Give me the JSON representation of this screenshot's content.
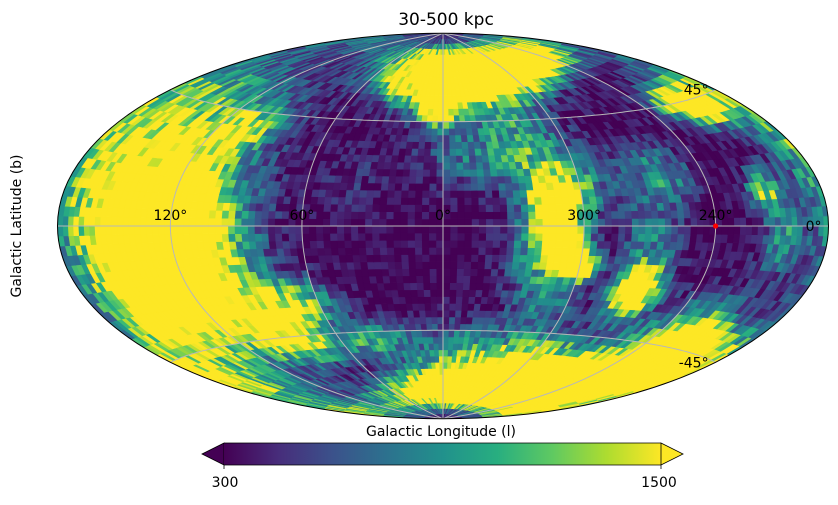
{
  "chart_data": {
    "type": "heatmap",
    "projection": "hammer",
    "title": "30-500 kpc",
    "ylabel": "Galactic Latitude (b)",
    "colorbar_label": "Galactic Longitude (l)",
    "colormap": "viridis",
    "color_range": [
      300,
      1500
    ],
    "colorbar_extend": "both",
    "colorbar_ticks": [
      "300",
      "1500"
    ],
    "lon_ticks": [
      {
        "label": "120°",
        "lon": 120
      },
      {
        "label": "60°",
        "lon": 60
      },
      {
        "label": "0°",
        "lon": 0
      },
      {
        "label": "300°",
        "lon": -60
      },
      {
        "label": "240°",
        "lon": -120
      }
    ],
    "lat_ticks": [
      {
        "label": "45°",
        "lat": 45
      },
      {
        "label": "0°",
        "lat": 0
      },
      {
        "label": "-45°",
        "lat": -45
      }
    ],
    "grid": true,
    "marker": {
      "lon": -120,
      "lat": 0,
      "color": "#ff0000"
    },
    "background_level": 300,
    "blobs": [
      {
        "lon": 122,
        "lat": -3,
        "rl": 22,
        "rb": 22,
        "amp": 2400
      },
      {
        "lon": 128,
        "lat": -18,
        "rl": 16,
        "rb": 14,
        "amp": 1200
      },
      {
        "lon": 150,
        "lat": 0,
        "rl": 22,
        "rb": 45,
        "amp": 500
      },
      {
        "lon": 105,
        "lat": 38,
        "rl": 8,
        "rb": 6,
        "amp": 700
      },
      {
        "lon": 112,
        "lat": 14,
        "rl": 6,
        "rb": 5,
        "amp": 800
      },
      {
        "lon": 70,
        "lat": -30,
        "rl": 10,
        "rb": 6,
        "amp": 800
      },
      {
        "lon": 90,
        "lat": -35,
        "rl": 14,
        "rb": 8,
        "amp": 700
      },
      {
        "lon": 85,
        "lat": -47,
        "rl": 10,
        "rb": 6,
        "amp": 1100
      },
      {
        "lon": 40,
        "lat": -48,
        "rl": 10,
        "rb": 6,
        "amp": 700
      },
      {
        "lon": 155,
        "lat": -35,
        "rl": 12,
        "rb": 12,
        "amp": 600
      },
      {
        "lon": 25,
        "lat": 62,
        "rl": 10,
        "rb": 6,
        "amp": 800
      },
      {
        "lon": -20,
        "lat": 57,
        "rl": 18,
        "rb": 8,
        "amp": 700
      },
      {
        "lon": -40,
        "lat": 68,
        "rl": 14,
        "rb": 6,
        "amp": 3000
      },
      {
        "lon": -80,
        "lat": 72,
        "rl": 14,
        "rb": 5,
        "amp": 2000
      },
      {
        "lon": -10,
        "lat": 70,
        "rl": 18,
        "rb": 8,
        "amp": 700
      },
      {
        "lon": 2,
        "lat": 52,
        "rl": 6,
        "rb": 6,
        "amp": 1400
      },
      {
        "lon": -20,
        "lat": 30,
        "rl": 18,
        "rb": 10,
        "amp": 500
      },
      {
        "lon": -40,
        "lat": 40,
        "rl": 10,
        "rb": 12,
        "amp": 400
      },
      {
        "lon": -48,
        "lat": 8,
        "rl": 8,
        "rb": 8,
        "amp": 1800
      },
      {
        "lon": -50,
        "lat": -7,
        "rl": 6,
        "rb": 6,
        "amp": 1500
      },
      {
        "lon": -55,
        "lat": 18,
        "rl": 12,
        "rb": 10,
        "amp": 700
      },
      {
        "lon": -60,
        "lat": -15,
        "rl": 5,
        "rb": 5,
        "amp": 1600
      },
      {
        "lon": -40,
        "lat": -10,
        "rl": 10,
        "rb": 10,
        "amp": 500
      },
      {
        "lon": -48,
        "lat": -30,
        "rl": 10,
        "rb": 12,
        "amp": 500
      },
      {
        "lon": -90,
        "lat": -25,
        "rl": 6,
        "rb": 6,
        "amp": 2200
      },
      {
        "lon": -90,
        "lat": -10,
        "rl": 10,
        "rb": 20,
        "amp": 500
      },
      {
        "lon": -100,
        "lat": 20,
        "rl": 10,
        "rb": 8,
        "amp": 500
      },
      {
        "lon": -150,
        "lat": 44,
        "rl": 10,
        "rb": 5,
        "amp": 2000
      },
      {
        "lon": -148,
        "lat": 12,
        "rl": 6,
        "rb": 5,
        "amp": 1000
      },
      {
        "lon": -155,
        "lat": -5,
        "rl": 8,
        "rb": 8,
        "amp": 600
      },
      {
        "lon": -150,
        "lat": -50,
        "rl": 12,
        "rb": 8,
        "amp": 2400
      },
      {
        "lon": -135,
        "lat": -40,
        "rl": 14,
        "rb": 10,
        "amp": 900
      },
      {
        "lon": -125,
        "lat": -57,
        "rl": 14,
        "rb": 8,
        "amp": 800
      },
      {
        "lon": -95,
        "lat": -65,
        "rl": 18,
        "rb": 8,
        "amp": 1200
      },
      {
        "lon": -55,
        "lat": -72,
        "rl": 20,
        "rb": 6,
        "amp": 3000
      },
      {
        "lon": -20,
        "lat": -65,
        "rl": 18,
        "rb": 8,
        "amp": 800
      },
      {
        "lon": -10,
        "lat": -50,
        "rl": 12,
        "rb": 8,
        "amp": 400
      },
      {
        "lon": -60,
        "lat": -55,
        "rl": 14,
        "rb": 8,
        "amp": 700
      },
      {
        "lon": 165,
        "lat": 20,
        "rl": 12,
        "rb": 25,
        "amp": 500
      },
      {
        "lon": 175,
        "lat": -55,
        "rl": 15,
        "rb": 10,
        "amp": 600
      },
      {
        "lon": -175,
        "lat": 30,
        "rl": 10,
        "rb": 20,
        "amp": 400
      },
      {
        "lon": 40,
        "lat": 20,
        "rl": 10,
        "rb": 10,
        "amp": 150
      },
      {
        "lon": 130,
        "lat": 40,
        "rl": 20,
        "rb": 12,
        "amp": 400
      }
    ]
  }
}
